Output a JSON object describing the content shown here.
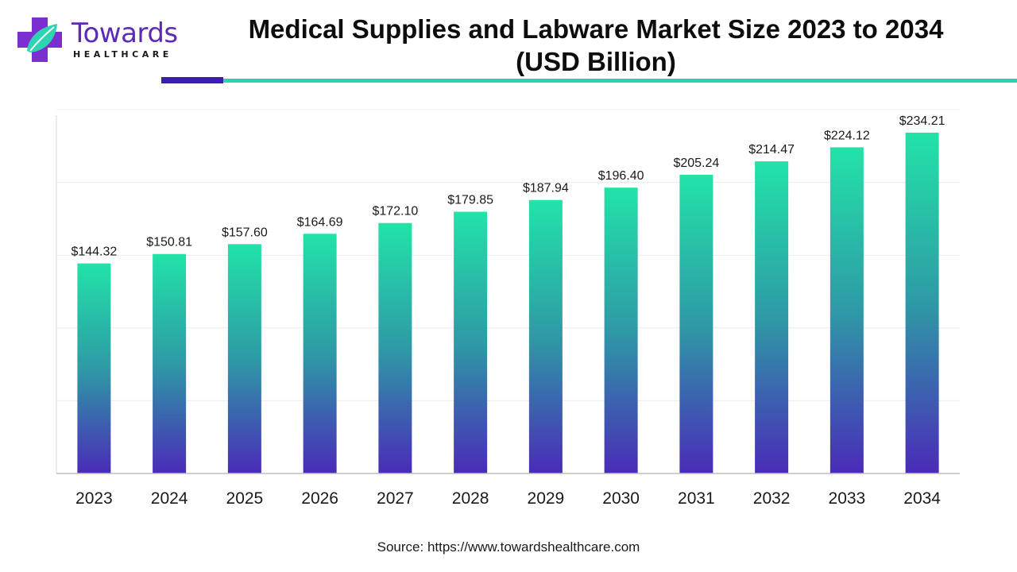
{
  "brand": {
    "name": "Towards",
    "tagline": "HEALTHCARE"
  },
  "colors": {
    "bar_top": "#22e3a8",
    "bar_mid": "#2e9aa6",
    "bar_bottom": "#4a2bb8",
    "accent_dark": "#3b1fa8",
    "accent_teal": "#2ed3b2"
  },
  "title": "Medical Supplies and Labware Market Size 2023 to 2034 (USD Billion)",
  "source": "Source: https://www.towardshealthcare.com",
  "chart_data": {
    "type": "bar",
    "categories": [
      "2023",
      "2024",
      "2025",
      "2026",
      "2027",
      "2028",
      "2029",
      "2030",
      "2031",
      "2032",
      "2033",
      "2034"
    ],
    "values": [
      144.32,
      150.81,
      157.6,
      164.69,
      172.1,
      179.85,
      187.94,
      196.4,
      205.24,
      214.47,
      224.12,
      234.21
    ],
    "data_labels": [
      "$144.32",
      "$150.81",
      "$157.60",
      "$164.69",
      "$172.10",
      "$179.85",
      "$187.94",
      "$196.40",
      "$205.24",
      "$214.47",
      "$224.12",
      "$234.21"
    ],
    "ylim": [
      0,
      250
    ],
    "grid": true,
    "legend": "none",
    "xlabel": "",
    "ylabel": ""
  }
}
